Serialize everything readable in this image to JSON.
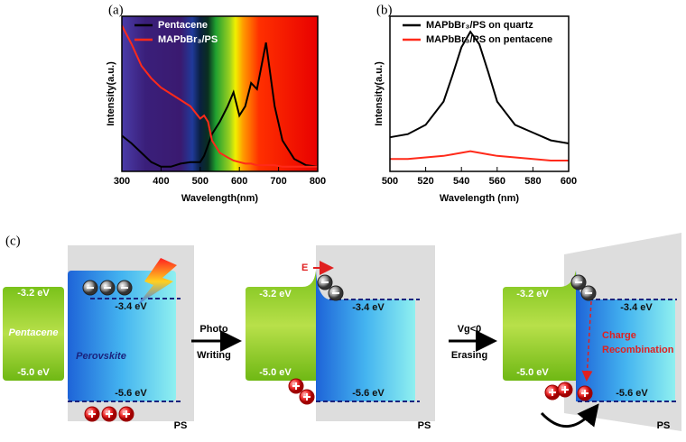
{
  "chart_data": [
    {
      "type": "line",
      "panel_label": "(a)",
      "xlabel": "Wavelength(nm)",
      "ylabel": "Intensity(a.u.)",
      "background": "spectrum",
      "legend": "upper center",
      "legend_text_color": "#ffffff",
      "x": [
        300,
        325,
        350,
        375,
        400,
        425,
        450,
        475,
        500,
        510,
        520,
        530,
        550,
        570,
        585,
        600,
        615,
        630,
        645,
        668,
        690,
        710,
        740,
        770,
        800
      ],
      "xlim": [
        300,
        800
      ],
      "xticks": [
        300,
        400,
        500,
        600,
        700,
        800
      ],
      "ylim": [
        0,
        1
      ],
      "series": [
        {
          "name": "Pentacene",
          "color": "#000000",
          "values": [
            0.23,
            0.18,
            0.12,
            0.06,
            0.03,
            0.03,
            0.05,
            0.06,
            0.06,
            0.1,
            0.17,
            0.24,
            0.32,
            0.42,
            0.51,
            0.36,
            0.42,
            0.57,
            0.53,
            0.83,
            0.42,
            0.2,
            0.08,
            0.04,
            0.03
          ]
        },
        {
          "name": "MAPbBr₃/PS",
          "color": "#ff2a1a",
          "values": [
            0.94,
            0.82,
            0.68,
            0.6,
            0.54,
            0.5,
            0.46,
            0.42,
            0.34,
            0.36,
            0.32,
            0.2,
            0.12,
            0.09,
            0.07,
            0.06,
            0.05,
            0.05,
            0.04,
            0.04,
            0.04,
            0.03,
            0.03,
            0.03,
            0.03
          ]
        }
      ]
    },
    {
      "type": "line",
      "panel_label": "(b)",
      "xlabel": "Wavelength (nm)",
      "ylabel": "Intensity(a.u.)",
      "legend": "upper center",
      "legend_text_color": "#000000",
      "x": [
        500,
        510,
        520,
        530,
        535,
        540,
        545,
        550,
        555,
        560,
        570,
        580,
        590,
        600
      ],
      "xlim": [
        500,
        600
      ],
      "xticks": [
        500,
        520,
        540,
        560,
        580,
        600
      ],
      "ylim": [
        0,
        1
      ],
      "series": [
        {
          "name": "MAPbBr₃/PS on quartz",
          "color": "#000000",
          "values": [
            0.22,
            0.24,
            0.3,
            0.45,
            0.62,
            0.8,
            0.9,
            0.82,
            0.64,
            0.45,
            0.3,
            0.25,
            0.2,
            0.18
          ]
        },
        {
          "name": "MAPbBr₃/PS on pentacene",
          "color": "#ff2a1a",
          "values": [
            0.08,
            0.08,
            0.09,
            0.1,
            0.11,
            0.12,
            0.13,
            0.12,
            0.11,
            0.1,
            0.09,
            0.08,
            0.07,
            0.07
          ]
        }
      ]
    }
  ],
  "diagram": {
    "panel_label": "(c)",
    "stages": [
      {
        "pentacene_lumo": "-3.2 eV",
        "pentacene_homo": "-5.0 eV",
        "pentacene_label": "Pentacene",
        "perovskite_cb": "-3.4 eV",
        "perovskite_vb": "-5.6 eV",
        "perovskite_label": "Perovskite",
        "substrate": "PS"
      },
      {
        "pentacene_lumo": "-3.2 eV",
        "pentacene_homo": "-5.0 eV",
        "perovskite_cb": "-3.4 eV",
        "perovskite_vb": "-5.6 eV",
        "field": "E",
        "substrate": "PS"
      },
      {
        "pentacene_lumo": "-3.2 eV",
        "pentacene_homo": "-5.0 eV",
        "perovskite_cb": "-3.4 eV",
        "perovskite_vb": "-5.6 eV",
        "note": [
          "Charge",
          "Recombination"
        ],
        "substrate": "PS"
      }
    ],
    "steps": [
      [
        "Photo",
        "Writing"
      ],
      [
        "Vg<0",
        "Erasing"
      ]
    ]
  }
}
